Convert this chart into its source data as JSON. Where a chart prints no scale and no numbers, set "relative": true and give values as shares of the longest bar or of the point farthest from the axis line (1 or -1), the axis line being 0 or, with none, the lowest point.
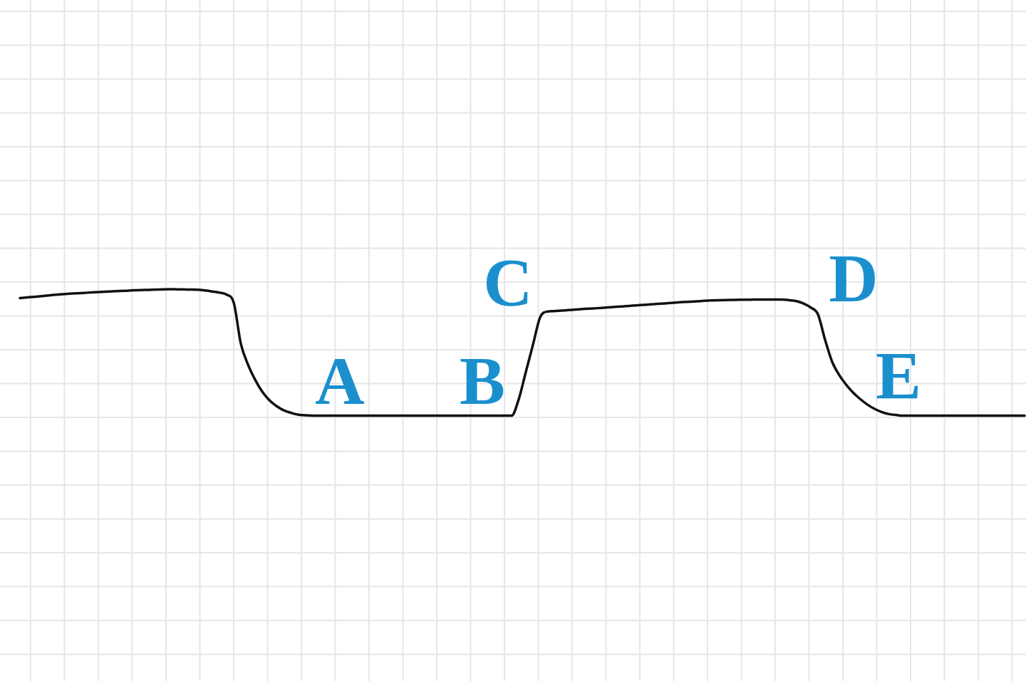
{
  "chart_data": {
    "type": "line",
    "relative": true,
    "grid": true,
    "categories": [
      null,
      null,
      null,
      null,
      null,
      null,
      null,
      null,
      null,
      null,
      null,
      null,
      null,
      null,
      null,
      null,
      null,
      null,
      null,
      null,
      null,
      null,
      null,
      null,
      null,
      null,
      null,
      null,
      null,
      null,
      null,
      null,
      null,
      null,
      null,
      null,
      null,
      null,
      null,
      null,
      null,
      null,
      null,
      null,
      null,
      null,
      null,
      null,
      null,
      null,
      null,
      null,
      null,
      null,
      null,
      null,
      null,
      null,
      null,
      null,
      null,
      null,
      null,
      null,
      null,
      null,
      null,
      null,
      null,
      null,
      null,
      null,
      null,
      null,
      null,
      null,
      null,
      null,
      null,
      null,
      null,
      null,
      null,
      null,
      null,
      null,
      null,
      null,
      null,
      null,
      null,
      null,
      null,
      null,
      null,
      null,
      null,
      null,
      null,
      null,
      null,
      null,
      null,
      null,
      null,
      null,
      null,
      null,
      null,
      null,
      null,
      null,
      null,
      null,
      null,
      null,
      null,
      null,
      null,
      null,
      null,
      null,
      null,
      null,
      null,
      null,
      null,
      null,
      null,
      null,
      null,
      null,
      null,
      null,
      null,
      null,
      null,
      null,
      null,
      null,
      null,
      null
    ],
    "series": [
      {
        "color": "#111111",
        "values": [
          0.93,
          0.935,
          0.94,
          0.945,
          0.951,
          0.956,
          0.961,
          0.965,
          0.968,
          0.971,
          0.974,
          0.977,
          0.98,
          0.983,
          0.986,
          0.988,
          0.991,
          0.993,
          0.995,
          0.997,
          0.999,
          1.0,
          0.999,
          0.998,
          0.997,
          0.996,
          0.99,
          0.982,
          0.973,
          0.958,
          0.895,
          0.57,
          0.405,
          0.285,
          0.19,
          0.123,
          0.076,
          0.043,
          0.023,
          0.008,
          0.003,
          0,
          0,
          0,
          0,
          0,
          0,
          0,
          0,
          0,
          0,
          0,
          0,
          0,
          0,
          0,
          0,
          0,
          0,
          0,
          0,
          0,
          0,
          0,
          0,
          0,
          0,
          0,
          0,
          0,
          0.129,
          0.345,
          0.561,
          0.777,
          0.823,
          0.827,
          0.831,
          0.835,
          0.839,
          0.843,
          0.847,
          0.85,
          0.854,
          0.858,
          0.862,
          0.866,
          0.87,
          0.874,
          0.878,
          0.882,
          0.886,
          0.89,
          0.894,
          0.898,
          0.901,
          0.904,
          0.908,
          0.911,
          0.913,
          0.914,
          0.915,
          0.917,
          0.917,
          0.918,
          0.918,
          0.918,
          0.918,
          0.919,
          0.913,
          0.906,
          0.887,
          0.855,
          0.801,
          0.6,
          0.425,
          0.32,
          0.242,
          0.179,
          0.128,
          0.085,
          0.052,
          0.028,
          0.012,
          0.005,
          0,
          0,
          0,
          0,
          0,
          0,
          0,
          0,
          0,
          0,
          0,
          0,
          0,
          0,
          0,
          0,
          0,
          0
        ]
      }
    ],
    "annotations": [
      "A",
      "B",
      "C",
      "D",
      "E"
    ]
  }
}
